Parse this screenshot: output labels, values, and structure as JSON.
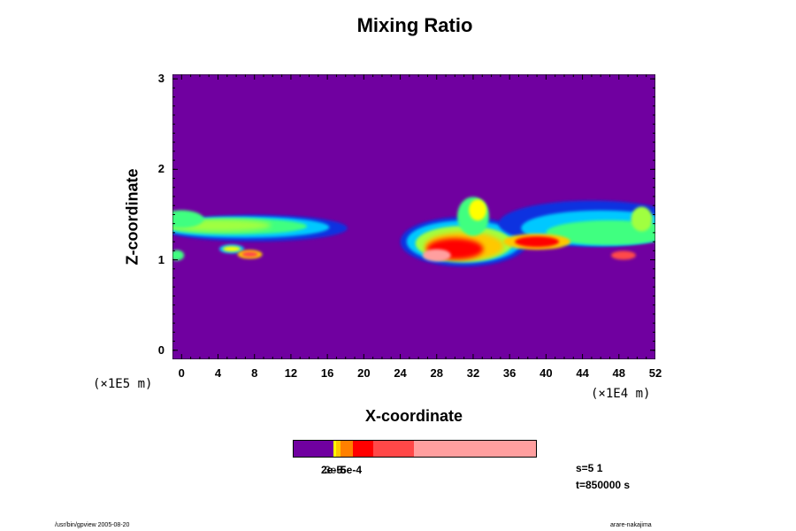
{
  "chart_data": {
    "type": "heatmap",
    "title": "Mixing Ratio",
    "xlabel": "X-coordinate",
    "ylabel": "Z-coordinate",
    "x_scale_label": "(×1E4 m)",
    "y_scale_label": "(×1E5 m)",
    "xlim": [
      -1,
      52
    ],
    "ylim": [
      -0.1,
      3.05
    ],
    "x_ticks": [
      0,
      4,
      8,
      12,
      16,
      20,
      24,
      28,
      32,
      36,
      40,
      44,
      48,
      52
    ],
    "y_ticks": [
      0,
      1,
      2,
      3
    ],
    "background_color": "#7000a0",
    "colorbar": {
      "levels": [
        "",
        "",
        "",
        "",
        "",
        "",
        ""
      ],
      "colors": [
        "#7000a0",
        "#ffff00",
        "#ffc800",
        "#ff8000",
        "#ff0000",
        "#ff4848",
        "#ff9f9f"
      ],
      "visible_labels": [
        "2e-5",
        "3e-5",
        "5e-4"
      ]
    },
    "cloud_layers": [
      {
        "x": [
          -1,
          19
        ],
        "z": [
          1.05,
          1.55
        ],
        "peak": "green"
      },
      {
        "x": [
          24,
          40
        ],
        "z": [
          0.9,
          1.6
        ],
        "peak": "red"
      },
      {
        "x": [
          38,
          52
        ],
        "z": [
          0.95,
          1.65
        ],
        "peak": "orange"
      }
    ]
  },
  "info": {
    "s": "s=5 1",
    "t": "t=850000 s"
  },
  "footer": {
    "left": "/usr/bin/gpview 2005-08-20",
    "right": "arare-nakajima"
  }
}
